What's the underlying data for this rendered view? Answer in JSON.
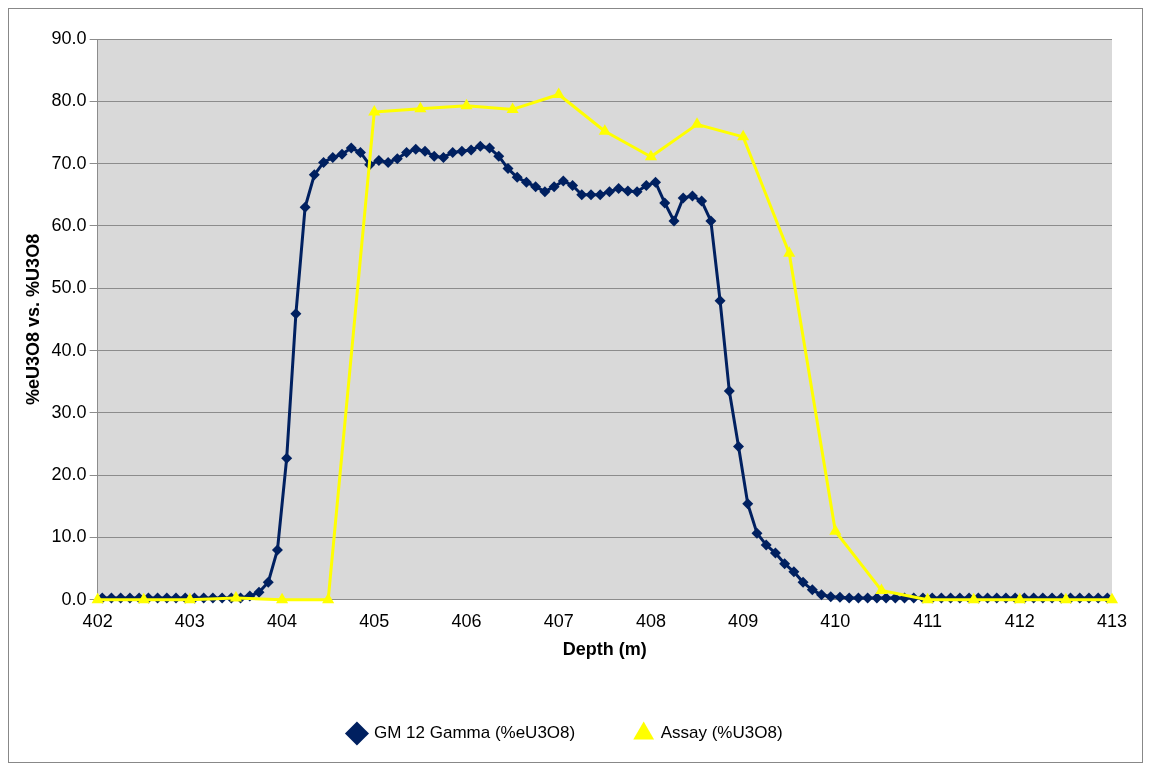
{
  "chart_data": {
    "type": "line",
    "xlabel": "Depth (m)",
    "ylabel": "%eU3O8 vs. %U3O8",
    "xlim": [
      402,
      413
    ],
    "xticks": [
      402,
      403,
      404,
      405,
      406,
      407,
      408,
      409,
      410,
      411,
      412,
      413
    ],
    "ylim": [
      0,
      90
    ],
    "yticks": [
      {
        "value": 0,
        "label": "0.0"
      },
      {
        "value": 10,
        "label": "10.0"
      },
      {
        "value": 20,
        "label": "20.0"
      },
      {
        "value": 30,
        "label": "30.0"
      },
      {
        "value": 40,
        "label": "40.0"
      },
      {
        "value": 50,
        "label": "50.0"
      },
      {
        "value": 60,
        "label": "60.0"
      },
      {
        "value": 70,
        "label": "70.0"
      },
      {
        "value": 80,
        "label": "80.0"
      },
      {
        "value": 90,
        "label": "90.0"
      }
    ],
    "grid": "y",
    "legend": "bottom",
    "series": [
      {
        "name": "GM 12 Gamma (%eU3O8)",
        "color": "#002060",
        "marker": "diamond",
        "x": [
          402.05,
          402.15,
          402.25,
          402.35,
          402.45,
          402.55,
          402.65,
          402.75,
          402.85,
          402.95,
          403.05,
          403.15,
          403.25,
          403.35,
          403.45,
          403.55,
          403.65,
          403.75,
          403.85,
          403.95,
          404.05,
          404.15,
          404.25,
          404.35,
          404.45,
          404.55,
          404.65,
          404.75,
          404.85,
          404.95,
          405.05,
          405.15,
          405.25,
          405.35,
          405.45,
          405.55,
          405.65,
          405.75,
          405.85,
          405.95,
          406.05,
          406.15,
          406.25,
          406.35,
          406.45,
          406.55,
          406.65,
          406.75,
          406.85,
          406.95,
          407.05,
          407.15,
          407.25,
          407.35,
          407.45,
          407.55,
          407.65,
          407.75,
          407.85,
          407.95,
          408.05,
          408.15,
          408.25,
          408.35,
          408.45,
          408.55,
          408.65,
          408.75,
          408.85,
          408.95,
          409.05,
          409.15,
          409.25,
          409.35,
          409.45,
          409.55,
          409.65,
          409.75,
          409.85,
          409.95,
          410.05,
          410.15,
          410.25,
          410.35,
          410.45,
          410.55,
          410.65,
          410.75,
          410.85,
          410.95,
          411.05,
          411.15,
          411.25,
          411.35,
          411.45,
          411.55,
          411.65,
          411.75,
          411.85,
          411.95,
          412.05,
          412.15,
          412.25,
          412.35,
          412.45,
          412.55,
          412.65,
          412.75,
          412.85,
          412.95
        ],
        "values": [
          0.3,
          0.3,
          0.3,
          0.3,
          0.3,
          0.3,
          0.3,
          0.3,
          0.3,
          0.3,
          0.3,
          0.3,
          0.3,
          0.3,
          0.3,
          0.3,
          0.6,
          1.2,
          2.8,
          8.0,
          22.7,
          45.9,
          63.0,
          68.2,
          70.2,
          71.0,
          71.5,
          72.5,
          71.8,
          69.8,
          70.5,
          70.2,
          70.8,
          71.8,
          72.3,
          72.0,
          71.2,
          71.0,
          71.8,
          72.0,
          72.2,
          72.8,
          72.5,
          71.2,
          69.2,
          67.8,
          67.0,
          66.3,
          65.5,
          66.3,
          67.2,
          66.5,
          65.0,
          65.0,
          65.0,
          65.5,
          66.0,
          65.6,
          65.5,
          66.5,
          67.0,
          63.7,
          60.8,
          64.5,
          64.8,
          64.0,
          60.8,
          48.0,
          33.5,
          24.6,
          15.4,
          10.7,
          8.8,
          7.5,
          5.8,
          4.5,
          2.8,
          1.6,
          0.8,
          0.5,
          0.4,
          0.3,
          0.3,
          0.3,
          0.3,
          0.3,
          0.3,
          0.3,
          0.3,
          0.3,
          0.3,
          0.3,
          0.3,
          0.3,
          0.3,
          0.3,
          0.3,
          0.3,
          0.3,
          0.3,
          0.3,
          0.3,
          0.3,
          0.3,
          0.3,
          0.3,
          0.3,
          0.3,
          0.3,
          0.3
        ]
      },
      {
        "name": "Assay (%U3O8)",
        "color": "#ffff00",
        "marker": "triangle",
        "x": [
          402,
          402.5,
          403,
          403.5,
          404,
          404.5,
          405,
          405.5,
          406,
          406.5,
          407,
          407.5,
          408,
          408.5,
          409,
          409.5,
          410,
          410.5,
          411,
          411.5,
          412,
          412.5,
          413
        ],
        "values": [
          0,
          0,
          0,
          0.3,
          0,
          0,
          78.3,
          78.8,
          79.3,
          78.7,
          81.1,
          75.2,
          71.1,
          76.3,
          74.3,
          55.6,
          11.0,
          1.5,
          0,
          0,
          0,
          0,
          0
        ]
      }
    ]
  }
}
